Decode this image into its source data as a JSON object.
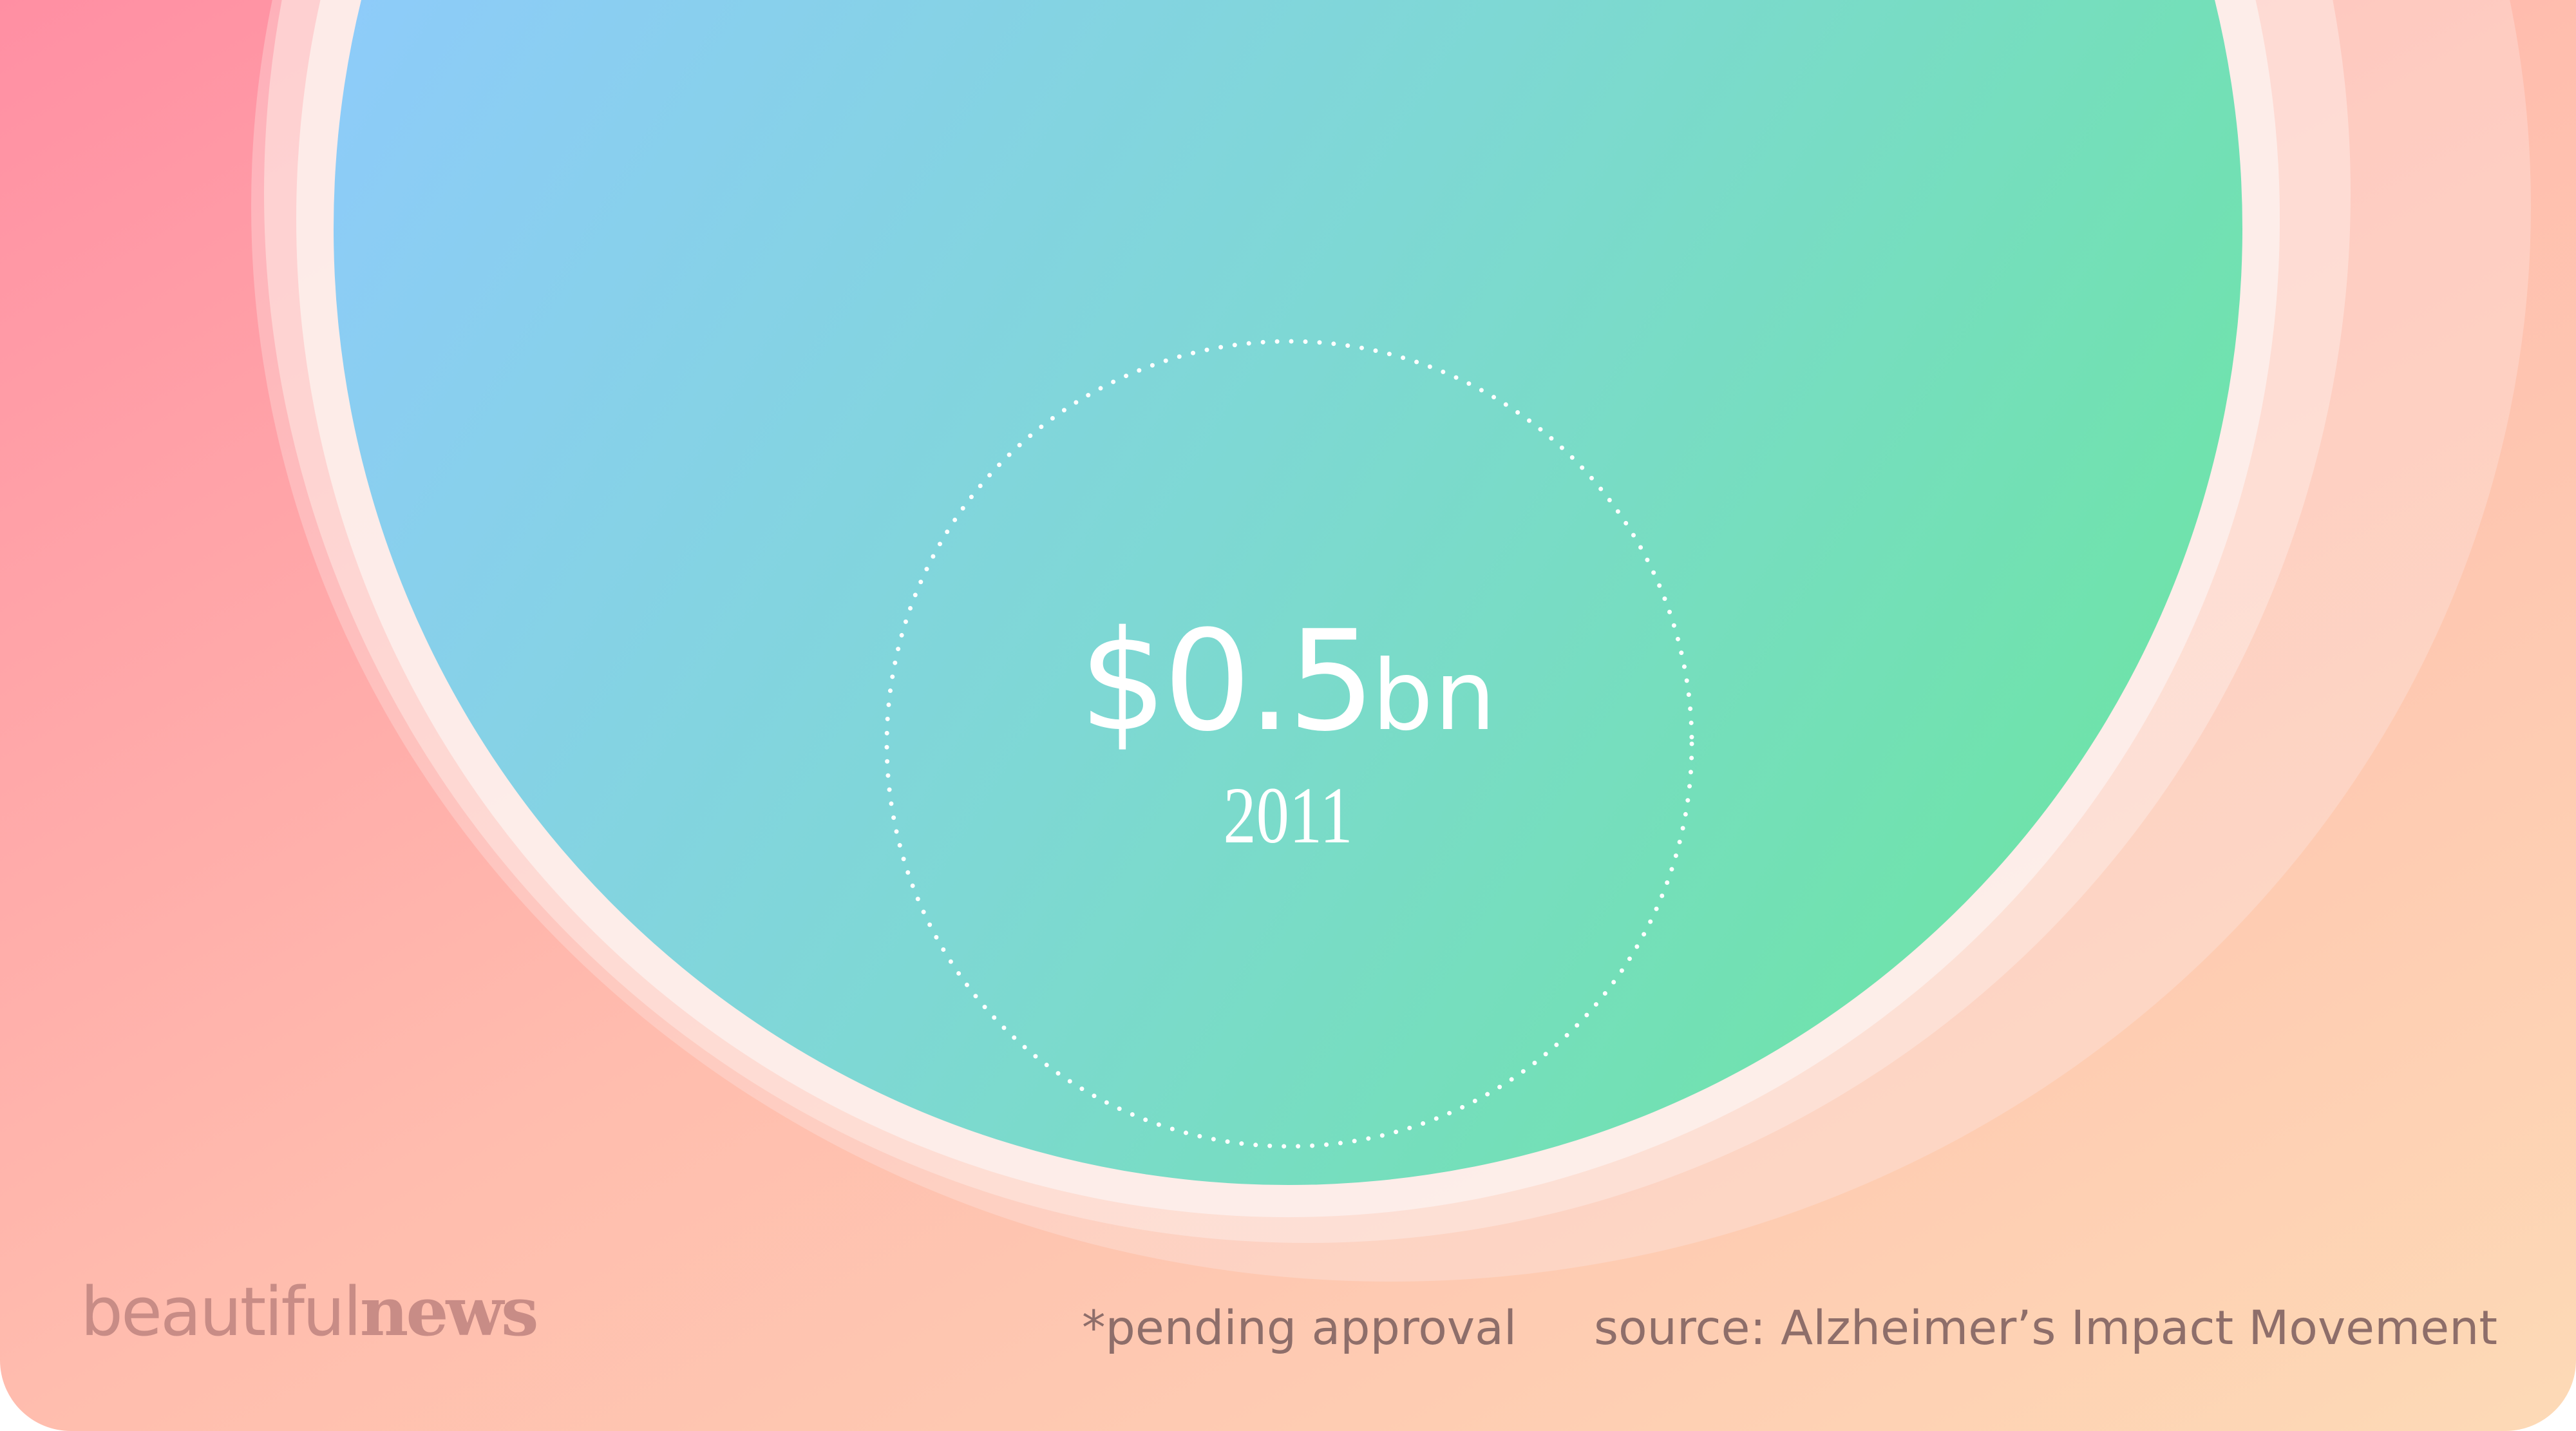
{
  "figure": {
    "value_number": "$0.5",
    "value_unit": "bn",
    "year": "2011"
  },
  "footer": {
    "logo_part1": "beautiful",
    "logo_part2": "news",
    "pending_note": "*pending approval",
    "source_note": "source: Alzheimer’s Impact Movement"
  },
  "colors": {
    "background_start": "#ff8fa3",
    "background_end": "#fdd9b5",
    "circle_start": "#8ecbfa",
    "circle_end": "#6be3a1",
    "ring": "#fde9e4",
    "logo": "#c88c86",
    "text": "#8e6e6a"
  }
}
